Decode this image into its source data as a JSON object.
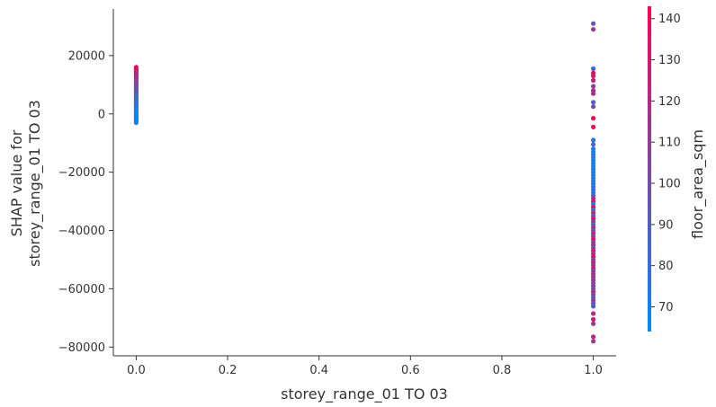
{
  "chart_data": {
    "type": "scatter",
    "xlabel": "storey_range_01 TO 03",
    "ylabel_lines": [
      "SHAP value for",
      "storey_range_01 TO 03"
    ],
    "xlim": [
      -0.05,
      1.05
    ],
    "ylim": [
      -83000,
      36000
    ],
    "x_ticks": [
      0.0,
      0.2,
      0.4,
      0.6,
      0.8,
      1.0
    ],
    "x_tick_labels": [
      "0.0",
      "0.2",
      "0.4",
      "0.6",
      "0.8",
      "1.0"
    ],
    "y_ticks": [
      20000,
      0,
      -20000,
      -40000,
      -60000,
      -80000
    ],
    "y_tick_labels": [
      "20000",
      "0",
      "−20000",
      "−40000",
      "−60000",
      "−80000"
    ],
    "colorbar": {
      "label": "floor_area_sqm",
      "min": 64,
      "max": 143,
      "ticks": [
        70,
        80,
        90,
        100,
        110,
        120,
        130,
        140
      ],
      "tick_labels": [
        "70",
        "80",
        "90",
        "100",
        "110",
        "120",
        "130",
        "140"
      ],
      "colors": [
        "#008afb",
        "#ff0052"
      ]
    },
    "points": [
      {
        "x": 0,
        "y": 16000,
        "c": 140
      },
      {
        "x": 0,
        "y": 15500,
        "c": 135
      },
      {
        "x": 0,
        "y": 15000,
        "c": 138
      },
      {
        "x": 0,
        "y": 14500,
        "c": 130
      },
      {
        "x": 0,
        "y": 14000,
        "c": 125
      },
      {
        "x": 0,
        "y": 13500,
        "c": 122
      },
      {
        "x": 0,
        "y": 13000,
        "c": 128
      },
      {
        "x": 0,
        "y": 12500,
        "c": 118
      },
      {
        "x": 0,
        "y": 12000,
        "c": 115
      },
      {
        "x": 0,
        "y": 11500,
        "c": 110
      },
      {
        "x": 0,
        "y": 11000,
        "c": 112
      },
      {
        "x": 0,
        "y": 10500,
        "c": 105
      },
      {
        "x": 0,
        "y": 10000,
        "c": 108
      },
      {
        "x": 0,
        "y": 9500,
        "c": 100
      },
      {
        "x": 0,
        "y": 9000,
        "c": 102
      },
      {
        "x": 0,
        "y": 8500,
        "c": 98
      },
      {
        "x": 0,
        "y": 8000,
        "c": 95
      },
      {
        "x": 0,
        "y": 7500,
        "c": 92
      },
      {
        "x": 0,
        "y": 7000,
        "c": 96
      },
      {
        "x": 0,
        "y": 6500,
        "c": 90
      },
      {
        "x": 0,
        "y": 6000,
        "c": 88
      },
      {
        "x": 0,
        "y": 5500,
        "c": 85
      },
      {
        "x": 0,
        "y": 5000,
        "c": 82
      },
      {
        "x": 0,
        "y": 4500,
        "c": 84
      },
      {
        "x": 0,
        "y": 4000,
        "c": 80
      },
      {
        "x": 0,
        "y": 3500,
        "c": 78
      },
      {
        "x": 0,
        "y": 3000,
        "c": 76
      },
      {
        "x": 0,
        "y": 2500,
        "c": 74
      },
      {
        "x": 0,
        "y": 2000,
        "c": 72
      },
      {
        "x": 0,
        "y": 1500,
        "c": 70
      },
      {
        "x": 0,
        "y": 1000,
        "c": 68
      },
      {
        "x": 0,
        "y": 500,
        "c": 70
      },
      {
        "x": 0,
        "y": 0,
        "c": 67
      },
      {
        "x": 0,
        "y": -500,
        "c": 66
      },
      {
        "x": 0,
        "y": -1000,
        "c": 68
      },
      {
        "x": 0,
        "y": -1500,
        "c": 65
      },
      {
        "x": 0,
        "y": -2000,
        "c": 66
      },
      {
        "x": 0,
        "y": -2500,
        "c": 65
      },
      {
        "x": 0,
        "y": -3000,
        "c": 67
      },
      {
        "x": 1,
        "y": 31000,
        "c": 95
      },
      {
        "x": 1,
        "y": 29000,
        "c": 112
      },
      {
        "x": 1,
        "y": 15500,
        "c": 85
      },
      {
        "x": 1,
        "y": 14000,
        "c": 140
      },
      {
        "x": 1,
        "y": 13000,
        "c": 130
      },
      {
        "x": 1,
        "y": 11500,
        "c": 125
      },
      {
        "x": 1,
        "y": 9500,
        "c": 105
      },
      {
        "x": 1,
        "y": 8000,
        "c": 115
      },
      {
        "x": 1,
        "y": 7000,
        "c": 118
      },
      {
        "x": 1,
        "y": 4000,
        "c": 90
      },
      {
        "x": 1,
        "y": 2500,
        "c": 100
      },
      {
        "x": 1,
        "y": -1500,
        "c": 140
      },
      {
        "x": 1,
        "y": -4500,
        "c": 138
      },
      {
        "x": 1,
        "y": -9000,
        "c": 80
      },
      {
        "x": 1,
        "y": -10500,
        "c": 88
      },
      {
        "x": 1,
        "y": -12000,
        "c": 72
      },
      {
        "x": 1,
        "y": -13000,
        "c": 70
      },
      {
        "x": 1,
        "y": -14000,
        "c": 68
      },
      {
        "x": 1,
        "y": -15000,
        "c": 75
      },
      {
        "x": 1,
        "y": -16000,
        "c": 70
      },
      {
        "x": 1,
        "y": -17000,
        "c": 66
      },
      {
        "x": 1,
        "y": -18000,
        "c": 69
      },
      {
        "x": 1,
        "y": -19000,
        "c": 72
      },
      {
        "x": 1,
        "y": -20000,
        "c": 67
      },
      {
        "x": 1,
        "y": -21000,
        "c": 70
      },
      {
        "x": 1,
        "y": -22000,
        "c": 74
      },
      {
        "x": 1,
        "y": -23000,
        "c": 68
      },
      {
        "x": 1,
        "y": -24000,
        "c": 76
      },
      {
        "x": 1,
        "y": -25000,
        "c": 71
      },
      {
        "x": 1,
        "y": -26000,
        "c": 80
      },
      {
        "x": 1,
        "y": -27000,
        "c": 69
      },
      {
        "x": 1,
        "y": -28000,
        "c": 85
      },
      {
        "x": 1,
        "y": -29000,
        "c": 120
      },
      {
        "x": 1,
        "y": -30000,
        "c": 132
      },
      {
        "x": 1,
        "y": -31000,
        "c": 72
      },
      {
        "x": 1,
        "y": -32000,
        "c": 140
      },
      {
        "x": 1,
        "y": -33000,
        "c": 78
      },
      {
        "x": 1,
        "y": -34000,
        "c": 125
      },
      {
        "x": 1,
        "y": -35000,
        "c": 92
      },
      {
        "x": 1,
        "y": -36000,
        "c": 135
      },
      {
        "x": 1,
        "y": -37000,
        "c": 110
      },
      {
        "x": 1,
        "y": -38000,
        "c": 88
      },
      {
        "x": 1,
        "y": -39000,
        "c": 118
      },
      {
        "x": 1,
        "y": -40000,
        "c": 96
      },
      {
        "x": 1,
        "y": -41000,
        "c": 128
      },
      {
        "x": 1,
        "y": -42000,
        "c": 102
      },
      {
        "x": 1,
        "y": -43000,
        "c": 140
      },
      {
        "x": 1,
        "y": -44000,
        "c": 106
      },
      {
        "x": 1,
        "y": -45000,
        "c": 122
      },
      {
        "x": 1,
        "y": -46000,
        "c": 98
      },
      {
        "x": 1,
        "y": -47000,
        "c": 134
      },
      {
        "x": 1,
        "y": -48000,
        "c": 115
      },
      {
        "x": 1,
        "y": -49000,
        "c": 140
      },
      {
        "x": 1,
        "y": -50000,
        "c": 108
      },
      {
        "x": 1,
        "y": -51000,
        "c": 125
      },
      {
        "x": 1,
        "y": -52000,
        "c": 112
      },
      {
        "x": 1,
        "y": -53000,
        "c": 130
      },
      {
        "x": 1,
        "y": -54000,
        "c": 104
      },
      {
        "x": 1,
        "y": -55000,
        "c": 120
      },
      {
        "x": 1,
        "y": -56000,
        "c": 110
      },
      {
        "x": 1,
        "y": -57000,
        "c": 116
      },
      {
        "x": 1,
        "y": -58000,
        "c": 100
      },
      {
        "x": 1,
        "y": -59000,
        "c": 112
      },
      {
        "x": 1,
        "y": -60000,
        "c": 95
      },
      {
        "x": 1,
        "y": -61000,
        "c": 118
      },
      {
        "x": 1,
        "y": -62000,
        "c": 105
      },
      {
        "x": 1,
        "y": -63000,
        "c": 92
      },
      {
        "x": 1,
        "y": -64000,
        "c": 110
      },
      {
        "x": 1,
        "y": -65000,
        "c": 98
      },
      {
        "x": 1,
        "y": -66000,
        "c": 88
      },
      {
        "x": 1,
        "y": -68500,
        "c": 118
      },
      {
        "x": 1,
        "y": -70500,
        "c": 125
      },
      {
        "x": 1,
        "y": -72000,
        "c": 115
      },
      {
        "x": 1,
        "y": -76500,
        "c": 120
      },
      {
        "x": 1,
        "y": -78000,
        "c": 112
      }
    ]
  }
}
